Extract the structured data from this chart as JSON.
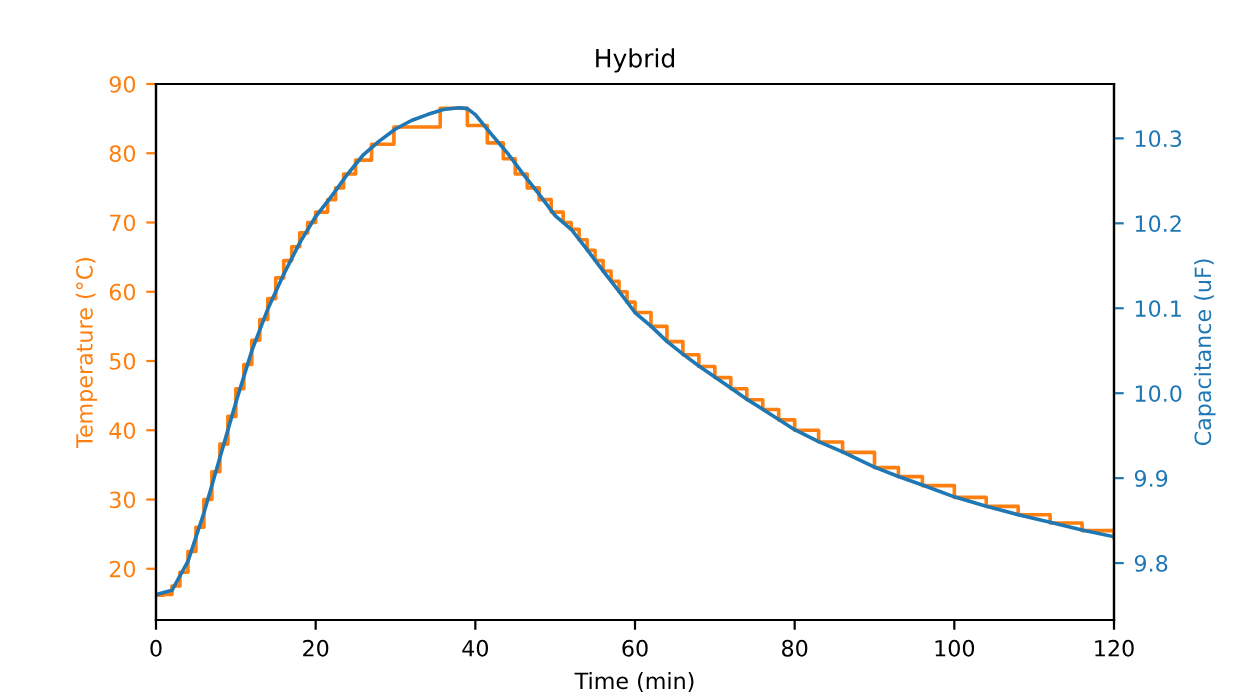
{
  "chart_data": {
    "type": "line",
    "title": "Hybrid",
    "xlabel": "Time (min)",
    "ylabel": "Temperature (°C)",
    "y2label": "Capacitance (uF)",
    "xlim": [
      0,
      120
    ],
    "xticks": [
      0,
      20,
      40,
      60,
      80,
      100,
      120
    ],
    "ylim": [
      12.6,
      90
    ],
    "yticks": [
      20,
      30,
      40,
      50,
      60,
      70,
      80,
      90
    ],
    "y2lim": [
      9.733,
      10.364
    ],
    "y2ticks": [
      9.8,
      9.9,
      {
        "value": 10.0,
        "label": "10.0"
      },
      10.1,
      10.2,
      10.3
    ],
    "grid": false,
    "series": [
      {
        "type": "step",
        "axis": "y",
        "color": "#ff7f0e",
        "x": [
          0,
          1,
          2,
          3,
          4,
          5,
          6,
          7,
          8,
          9,
          10,
          11,
          12,
          13,
          14,
          15,
          16,
          17,
          18,
          19,
          20,
          21.5,
          22.5,
          23.5,
          25,
          27,
          29.8,
          35.6,
          39,
          41.5,
          43.5,
          45,
          46.5,
          48,
          49.5,
          51,
          52,
          53,
          54,
          55,
          56,
          57,
          58,
          59,
          60,
          62,
          64,
          66,
          68,
          70,
          72,
          74,
          76,
          78,
          80,
          83,
          86,
          90,
          93,
          96,
          100,
          104,
          108,
          112,
          116,
          120
        ],
        "values": [
          16.2,
          16.3,
          17.5,
          19.5,
          22.5,
          26,
          30,
          34,
          38,
          42,
          46,
          49.5,
          53,
          56,
          59,
          62,
          64.5,
          66.5,
          68.5,
          70,
          71.5,
          73.3,
          75,
          77,
          79,
          81.3,
          83.8,
          86.5,
          84,
          81.5,
          79.2,
          77,
          75,
          73.3,
          71.5,
          70,
          69,
          67.5,
          66,
          64.5,
          63,
          61.5,
          60,
          58.5,
          57,
          55,
          52.8,
          50.9,
          49.2,
          47.6,
          46,
          44.4,
          43,
          41.5,
          40,
          38.3,
          36.8,
          34.6,
          33.3,
          32,
          30.3,
          29,
          27.8,
          26.6,
          25.5,
          24.5
        ]
      },
      {
        "axis": "y2",
        "color": "#1f77b4",
        "x": [
          0,
          2,
          4,
          6,
          8,
          10,
          12,
          14,
          16,
          18,
          20,
          22,
          24,
          26,
          28,
          30,
          32,
          34,
          36,
          38,
          39,
          40,
          42,
          44,
          46,
          48,
          50,
          52,
          54,
          56,
          58,
          60,
          62,
          64,
          66,
          68,
          70,
          72,
          74,
          76,
          78,
          80,
          83,
          86,
          90,
          93,
          96,
          100,
          104,
          108,
          112,
          116,
          120
        ],
        "values": [
          9.763,
          9.768,
          9.802,
          9.859,
          9.924,
          9.989,
          10.05,
          10.099,
          10.14,
          10.177,
          10.208,
          10.232,
          10.258,
          10.281,
          10.297,
          10.311,
          10.321,
          10.328,
          10.334,
          10.336,
          10.335,
          10.328,
          10.305,
          10.283,
          10.258,
          10.234,
          10.209,
          10.193,
          10.169,
          10.144,
          10.12,
          10.095,
          10.079,
          10.061,
          10.046,
          10.032,
          10.019,
          10.006,
          9.993,
          9.981,
          9.969,
          9.957,
          9.943,
          9.931,
          9.913,
          9.902,
          9.892,
          9.878,
          9.867,
          9.857,
          9.848,
          9.839,
          9.831
        ]
      }
    ]
  }
}
